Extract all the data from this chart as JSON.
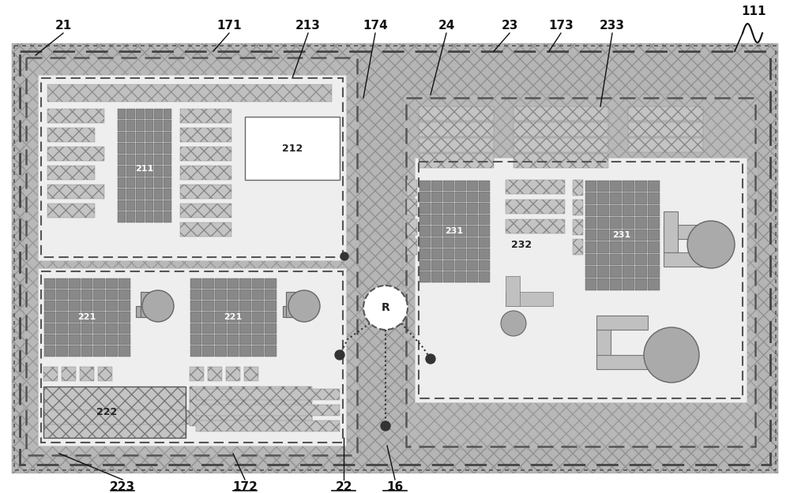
{
  "fig_w": 10.0,
  "fig_h": 6.25,
  "hatch_bg_color": "#b8b8b8",
  "hatch_inner_color": "#c8c8c8",
  "white_box_color": "#f0f0f0",
  "light_box_color": "#e8e8e8",
  "pad_color": "#b0b0b0",
  "dark_grid_color": "#909090",
  "dark_grid_edge": "#555555",
  "connector_color": "#aaaaaa",
  "label_fs": 10,
  "sublabel_fs": 8
}
